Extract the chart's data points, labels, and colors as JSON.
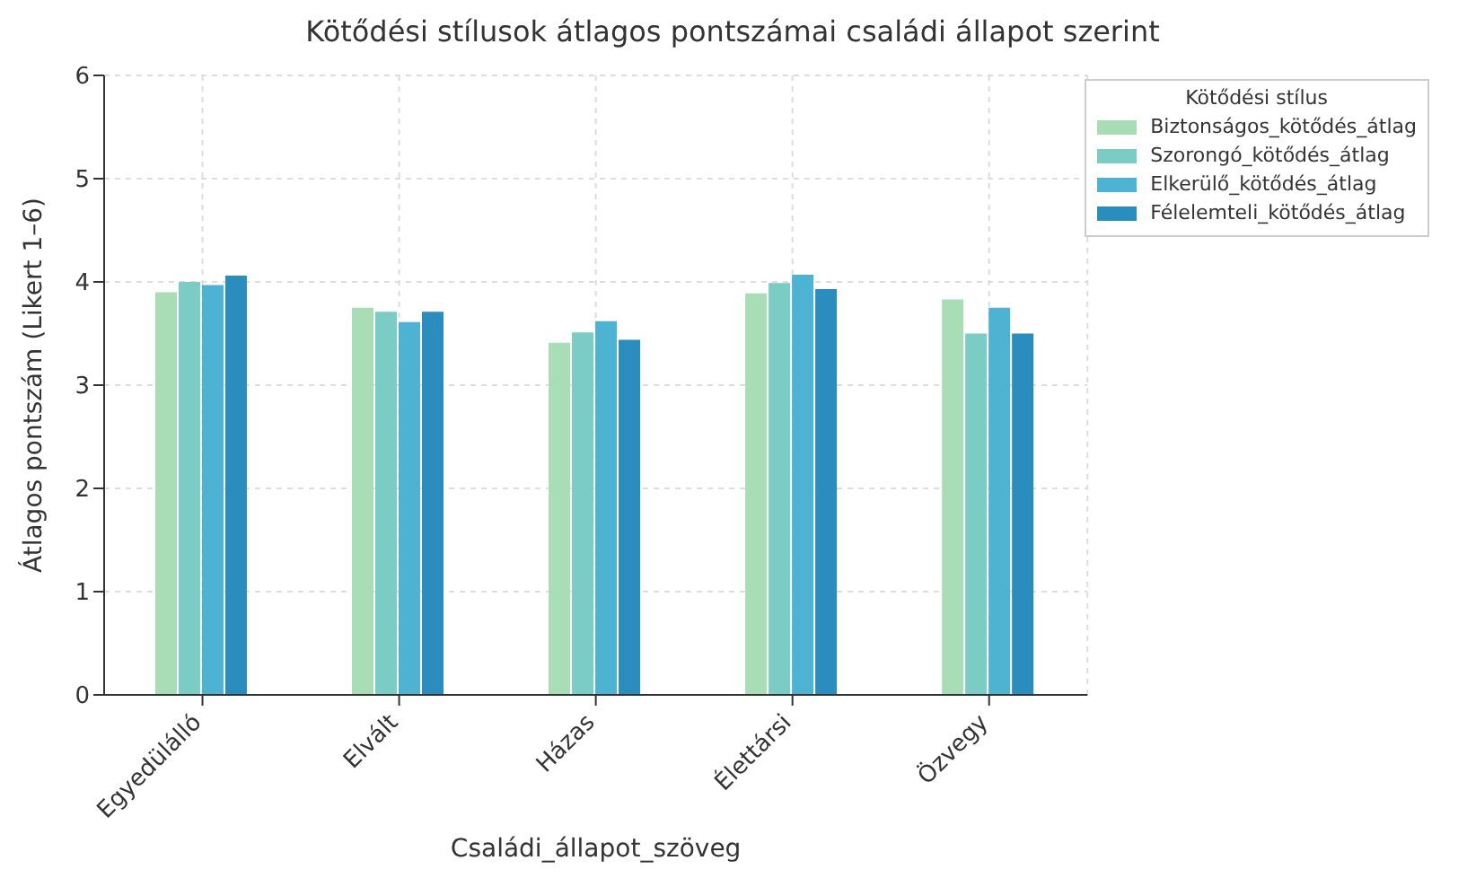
{
  "chart_data": {
    "type": "bar",
    "title": "Kötődési stílusok átlagos pontszámai családi állapot szerint",
    "xlabel": "Családi_állapot_szöveg",
    "ylabel": "Átlagos pontszám (Likert 1–6)",
    "legend_title": "Kötődési stílus",
    "categories": [
      "Egyedülálló",
      "Elvált",
      "Házas",
      "Élettársi",
      "Özvegy"
    ],
    "series": [
      {
        "name": "Biztonságos_kötődés_átlag",
        "color": "#a8ddb5",
        "values": [
          3.9,
          3.75,
          3.41,
          3.89,
          3.83
        ]
      },
      {
        "name": "Szorongó_kötődés_átlag",
        "color": "#7bccc4",
        "values": [
          4.0,
          3.71,
          3.51,
          3.99,
          3.5
        ]
      },
      {
        "name": "Elkerülő_kötődés_átlag",
        "color": "#4eb3d3",
        "values": [
          3.97,
          3.61,
          3.62,
          4.07,
          3.75
        ]
      },
      {
        "name": "Félelemteli_kötődés_átlag",
        "color": "#2b8cbe",
        "values": [
          4.06,
          3.71,
          3.44,
          3.93,
          3.5
        ]
      }
    ],
    "ylim": [
      0,
      6
    ],
    "yticks": [
      0,
      1,
      2,
      3,
      4,
      5,
      6
    ],
    "grid": true,
    "legend": "top right"
  }
}
